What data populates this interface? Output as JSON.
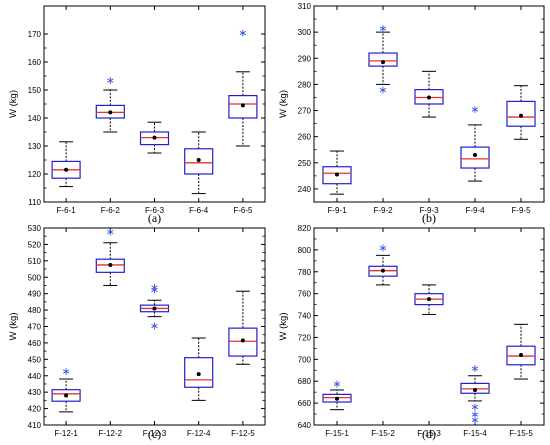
{
  "figure": {
    "ylabel": "W (kg)",
    "colors": {
      "box": "#1f1fd0",
      "median": "#e8332a",
      "mean": "#000000",
      "outlier": "#3a56e0",
      "frame": "#000000"
    }
  },
  "chart_data": [
    {
      "type": "boxplot",
      "panel_label": "(a)",
      "ylabel": "W (kg)",
      "ylim": [
        110,
        180
      ],
      "yticks": [
        110,
        120,
        130,
        140,
        150,
        160,
        170
      ],
      "ytick_labels": [
        "110",
        "120",
        "130",
        "140",
        "150",
        "160",
        "170"
      ],
      "categories": [
        "F-6-1",
        "F-6-2",
        "F-6-3",
        "F-6-4",
        "F-6-5"
      ],
      "boxes": [
        {
          "whislo": 115.5,
          "q1": 118.5,
          "med": 121.5,
          "mean": 121.5,
          "q3": 124.5,
          "whishi": 131.5,
          "fliers": []
        },
        {
          "whislo": 135,
          "q1": 140,
          "med": 142,
          "mean": 142,
          "q3": 144.5,
          "whishi": 150,
          "fliers": [
            153.5
          ]
        },
        {
          "whislo": 127.5,
          "q1": 130.5,
          "med": 133,
          "mean": 133,
          "q3": 135,
          "whishi": 138.5,
          "fliers": []
        },
        {
          "whislo": 113,
          "q1": 120,
          "med": 124,
          "mean": 125,
          "q3": 129,
          "whishi": 135,
          "fliers": []
        },
        {
          "whislo": 130,
          "q1": 140,
          "med": 145,
          "mean": 144.5,
          "q3": 148,
          "whishi": 156.5,
          "fliers": [
            170.5
          ]
        }
      ]
    },
    {
      "type": "boxplot",
      "panel_label": "(b)",
      "ylabel": "W (kg)",
      "ylim": [
        235,
        310
      ],
      "yticks": [
        240,
        250,
        260,
        270,
        280,
        290,
        300,
        310
      ],
      "ytick_labels": [
        "240",
        "250",
        "260",
        "270",
        "280",
        "290",
        "300",
        "310"
      ],
      "categories": [
        "F-9-1",
        "F-9-2",
        "F-9-3",
        "F-9-4",
        "F-9-5"
      ],
      "boxes": [
        {
          "whislo": 238,
          "q1": 242,
          "med": 246,
          "mean": 245.5,
          "q3": 248.5,
          "whishi": 254.5,
          "fliers": []
        },
        {
          "whislo": 280,
          "q1": 287,
          "med": 289,
          "mean": 288.5,
          "q3": 292,
          "whishi": 300,
          "fliers": [
            278,
            301.5
          ]
        },
        {
          "whislo": 267.5,
          "q1": 272.5,
          "med": 275,
          "mean": 275,
          "q3": 278,
          "whishi": 285,
          "fliers": []
        },
        {
          "whislo": 243,
          "q1": 248,
          "med": 251.5,
          "mean": 253,
          "q3": 256,
          "whishi": 264.5,
          "fliers": [
            270.5
          ]
        },
        {
          "whislo": 259,
          "q1": 264,
          "med": 267.5,
          "mean": 268,
          "q3": 273.5,
          "whishi": 279.5,
          "fliers": []
        }
      ]
    },
    {
      "type": "boxplot",
      "panel_label": "(c)",
      "ylabel": "W (kg)",
      "ylim": [
        410,
        530
      ],
      "yticks": [
        410,
        420,
        430,
        440,
        450,
        460,
        470,
        480,
        490,
        500,
        510,
        520,
        530
      ],
      "ytick_labels": [
        "410",
        "420",
        "430",
        "440",
        "450",
        "460",
        "470",
        "480",
        "490",
        "500",
        "510",
        "520",
        "530"
      ],
      "categories": [
        "F-12-1",
        "F-12-2",
        "F-12-3",
        "F-12-4",
        "F-12-5"
      ],
      "boxes": [
        {
          "whislo": 418,
          "q1": 424.5,
          "med": 429,
          "mean": 428,
          "q3": 431.5,
          "whishi": 438,
          "fliers": [
            443
          ]
        },
        {
          "whislo": 495,
          "q1": 503,
          "med": 507.5,
          "mean": 507.5,
          "q3": 511,
          "whishi": 521,
          "fliers": [
            528
          ]
        },
        {
          "whislo": 476,
          "q1": 479,
          "med": 481,
          "mean": 481,
          "q3": 483,
          "whishi": 486,
          "fliers": [
            470.5,
            492.5,
            494
          ]
        },
        {
          "whislo": 425,
          "q1": 433,
          "med": 437.5,
          "mean": 441,
          "q3": 451,
          "whishi": 463,
          "fliers": []
        },
        {
          "whislo": 447,
          "q1": 452,
          "med": 461,
          "mean": 461.5,
          "q3": 469,
          "whishi": 491.5,
          "fliers": []
        }
      ]
    },
    {
      "type": "boxplot",
      "panel_label": "(d)",
      "ylabel": "W (kg)",
      "ylim": [
        640,
        820
      ],
      "yticks": [
        640,
        660,
        680,
        700,
        720,
        740,
        760,
        780,
        800,
        820
      ],
      "ytick_labels": [
        "640",
        "660",
        "680",
        "700",
        "720",
        "740",
        "760",
        "780",
        "800",
        "820"
      ],
      "categories": [
        "F-15-1",
        "F-15-2",
        "F-15-3",
        "F-15-4",
        "F-15-5"
      ],
      "boxes": [
        {
          "whislo": 654,
          "q1": 661,
          "med": 665,
          "mean": 664,
          "q3": 668,
          "whishi": 672,
          "fliers": [
            678
          ]
        },
        {
          "whislo": 768,
          "q1": 776,
          "med": 781,
          "mean": 781,
          "q3": 785,
          "whishi": 795,
          "fliers": [
            802
          ]
        },
        {
          "whislo": 741,
          "q1": 750,
          "med": 755,
          "mean": 755,
          "q3": 760,
          "whishi": 768,
          "fliers": []
        },
        {
          "whislo": 662,
          "q1": 669,
          "med": 673,
          "mean": 672,
          "q3": 678,
          "whishi": 685,
          "fliers": [
            645,
            650,
            657,
            692
          ]
        },
        {
          "whislo": 682,
          "q1": 695,
          "med": 703,
          "mean": 704,
          "q3": 712,
          "whishi": 732,
          "fliers": []
        }
      ]
    }
  ]
}
